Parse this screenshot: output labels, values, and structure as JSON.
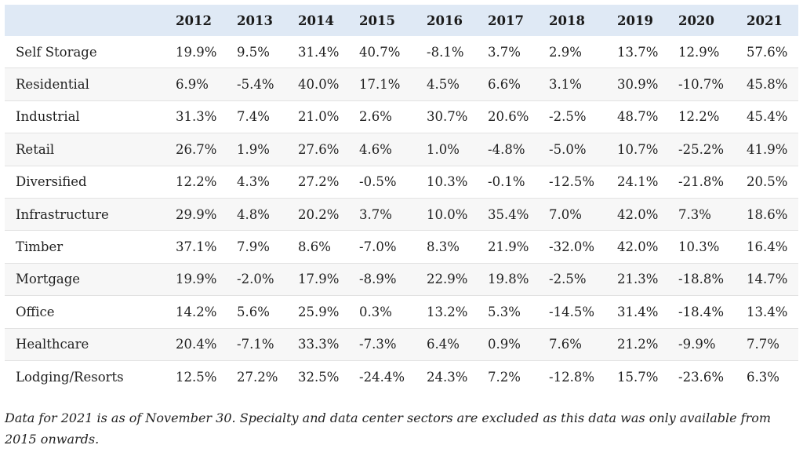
{
  "table": {
    "corner": "",
    "years": [
      "2012",
      "2013",
      "2014",
      "2015",
      "2016",
      "2017",
      "2018",
      "2019",
      "2020",
      "2021"
    ],
    "rows": [
      {
        "sector": "Self Storage",
        "values": [
          "19.9%",
          "9.5%",
          "31.4%",
          "40.7%",
          "-8.1%",
          "3.7%",
          "2.9%",
          "13.7%",
          "12.9%",
          "57.6%"
        ]
      },
      {
        "sector": "Residential",
        "values": [
          "6.9%",
          "-5.4%",
          "40.0%",
          "17.1%",
          "4.5%",
          "6.6%",
          "3.1%",
          "30.9%",
          "-10.7%",
          "45.8%"
        ]
      },
      {
        "sector": "Industrial",
        "values": [
          "31.3%",
          "7.4%",
          "21.0%",
          "2.6%",
          "30.7%",
          "20.6%",
          "-2.5%",
          "48.7%",
          "12.2%",
          "45.4%"
        ]
      },
      {
        "sector": "Retail",
        "values": [
          "26.7%",
          "1.9%",
          "27.6%",
          "4.6%",
          "1.0%",
          "-4.8%",
          "-5.0%",
          "10.7%",
          "-25.2%",
          "41.9%"
        ]
      },
      {
        "sector": "Diversified",
        "values": [
          "12.2%",
          "4.3%",
          "27.2%",
          "-0.5%",
          "10.3%",
          "-0.1%",
          "-12.5%",
          "24.1%",
          "-21.8%",
          "20.5%"
        ]
      },
      {
        "sector": "Infrastructure",
        "values": [
          "29.9%",
          "4.8%",
          "20.2%",
          "3.7%",
          "10.0%",
          "35.4%",
          "7.0%",
          "42.0%",
          "7.3%",
          "18.6%"
        ]
      },
      {
        "sector": "Timber",
        "values": [
          "37.1%",
          "7.9%",
          "8.6%",
          "-7.0%",
          "8.3%",
          "21.9%",
          "-32.0%",
          "42.0%",
          "10.3%",
          "16.4%"
        ]
      },
      {
        "sector": "Mortgage",
        "values": [
          "19.9%",
          "-2.0%",
          "17.9%",
          "-8.9%",
          "22.9%",
          "19.8%",
          "-2.5%",
          "21.3%",
          "-18.8%",
          "14.7%"
        ]
      },
      {
        "sector": "Office",
        "values": [
          "14.2%",
          "5.6%",
          "25.9%",
          "0.3%",
          "13.2%",
          "5.3%",
          "-14.5%",
          "31.4%",
          "-18.4%",
          "13.4%"
        ]
      },
      {
        "sector": "Healthcare",
        "values": [
          "20.4%",
          "-7.1%",
          "33.3%",
          "-7.3%",
          "6.4%",
          "0.9%",
          "7.6%",
          "21.2%",
          "-9.9%",
          "7.7%"
        ]
      },
      {
        "sector": "Lodging/Resorts",
        "values": [
          "12.5%",
          "27.2%",
          "32.5%",
          "-24.4%",
          "24.3%",
          "7.2%",
          "-12.8%",
          "15.7%",
          "-23.6%",
          "6.3%"
        ]
      }
    ]
  },
  "footnote": "Data for 2021 is as of November 30. Specialty and data center sectors are excluded as this data was only available from 2015 onwards.",
  "colors": {
    "header_background": "#dfe9f5",
    "row_alt_background": "#f7f7f7",
    "row_divider": "#e2e2e2"
  }
}
